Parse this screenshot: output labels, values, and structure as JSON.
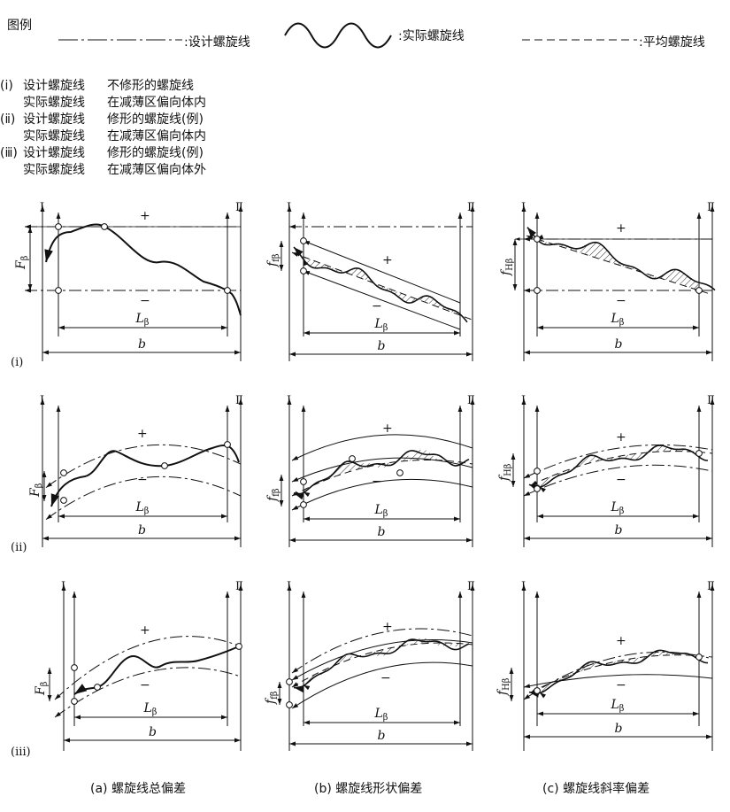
{
  "legend": {
    "title": "图例",
    "design": "设计螺旋线",
    "actual": "实际螺旋线",
    "mean": "平均螺旋线"
  },
  "notes": [
    {
      "tag": "(ⅰ)",
      "name": "设计螺旋线",
      "desc": "不修形的螺旋线"
    },
    {
      "tag": "",
      "name": "实际螺旋线",
      "desc": "在减薄区偏向体内"
    },
    {
      "tag": "(ⅱ)",
      "name": "设计螺旋线",
      "desc": "修形的螺旋线(例)"
    },
    {
      "tag": "",
      "name": "实际螺旋线",
      "desc": "在减薄区偏向体内"
    },
    {
      "tag": "(ⅲ)",
      "name": "设计螺旋线",
      "desc": "修形的螺旋线(例)"
    },
    {
      "tag": "",
      "name": "实际螺旋线",
      "desc": "在减薄区偏向体外"
    }
  ],
  "row_labels": [
    "(ⅰ)",
    "(ⅱ)",
    "(ⅲ)"
  ],
  "marks": {
    "plus": "+",
    "minus": "−",
    "boundary_I": "Ⅰ",
    "boundary_II": "Ⅱ",
    "L_main": "L",
    "L_sub": "β",
    "b": "b"
  },
  "columns": [
    {
      "caption": "(a)  螺旋线总偏差",
      "sym_main": "F",
      "sym_sub": "β"
    },
    {
      "caption": "(b)  螺旋线形状偏差",
      "sym_main": "f",
      "sym_sub": "fβ"
    },
    {
      "caption": "(c)  螺旋线斜率偏差",
      "sym_main": "f",
      "sym_sub": "Hβ"
    }
  ]
}
